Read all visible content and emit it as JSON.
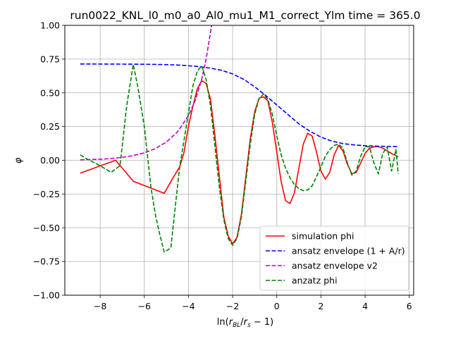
{
  "chart_data": {
    "type": "line",
    "title": "run0022_KNL_l0_m0_a0_Al0_mu1_M1_correct_Ylm time = 365.0",
    "xlabel_main": "ln(",
    "xlabel_r": "r",
    "xlabel_r_sub": "BL",
    "xlabel_slash": "/",
    "xlabel_rs": "r",
    "xlabel_rs_sub": "s",
    "xlabel_tail": " − 1)",
    "ylabel": "φ",
    "xlim": [
      -9.6,
      6.2
    ],
    "ylim": [
      -1.0,
      1.0
    ],
    "grid": true,
    "legend_position": "lower right",
    "x_ticks": [
      {
        "v": -8,
        "label": "−8"
      },
      {
        "v": -6,
        "label": "−6"
      },
      {
        "v": -4,
        "label": "−4"
      },
      {
        "v": -2,
        "label": "−2"
      },
      {
        "v": 0,
        "label": "0"
      },
      {
        "v": 2,
        "label": "2"
      },
      {
        "v": 4,
        "label": "4"
      },
      {
        "v": 6,
        "label": "6"
      }
    ],
    "y_ticks": [
      {
        "v": -1.0,
        "label": "−1.00"
      },
      {
        "v": -0.75,
        "label": "−0.75"
      },
      {
        "v": -0.5,
        "label": "−0.50"
      },
      {
        "v": -0.25,
        "label": "−0.25"
      },
      {
        "v": 0.0,
        "label": "0.00"
      },
      {
        "v": 0.25,
        "label": "0.25"
      },
      {
        "v": 0.5,
        "label": "0.50"
      },
      {
        "v": 0.75,
        "label": "0.75"
      },
      {
        "v": 1.0,
        "label": "1.00"
      }
    ],
    "series": [
      {
        "name": "simulation phi",
        "color": "#ff0000",
        "dash": "solid",
        "points": [
          [
            -8.9,
            -0.095
          ],
          [
            -7.3,
            0.0
          ],
          [
            -6.5,
            -0.155
          ],
          [
            -5.1,
            -0.245
          ],
          [
            -4.7,
            -0.13
          ],
          [
            -4.4,
            -0.05
          ],
          [
            -4.2,
            0.06
          ],
          [
            -4.0,
            0.25
          ],
          [
            -3.8,
            0.4
          ],
          [
            -3.6,
            0.53
          ],
          [
            -3.4,
            0.59
          ],
          [
            -3.2,
            0.57
          ],
          [
            -3.0,
            0.45
          ],
          [
            -2.8,
            0.18
          ],
          [
            -2.6,
            -0.12
          ],
          [
            -2.4,
            -0.42
          ],
          [
            -2.2,
            -0.56
          ],
          [
            -2.0,
            -0.62
          ],
          [
            -1.8,
            -0.57
          ],
          [
            -1.6,
            -0.4
          ],
          [
            -1.4,
            -0.12
          ],
          [
            -1.2,
            0.16
          ],
          [
            -1.0,
            0.36
          ],
          [
            -0.8,
            0.46
          ],
          [
            -0.6,
            0.47
          ],
          [
            -0.4,
            0.44
          ],
          [
            -0.2,
            0.28
          ],
          [
            0.0,
            0.06
          ],
          [
            0.2,
            -0.16
          ],
          [
            0.4,
            -0.3
          ],
          [
            0.6,
            -0.32
          ],
          [
            0.8,
            -0.24
          ],
          [
            1.0,
            -0.06
          ],
          [
            1.2,
            0.12
          ],
          [
            1.4,
            0.2
          ],
          [
            1.6,
            0.18
          ],
          [
            1.8,
            0.06
          ],
          [
            2.0,
            -0.08
          ],
          [
            2.2,
            -0.14
          ],
          [
            2.4,
            -0.09
          ],
          [
            2.6,
            0.04
          ],
          [
            2.8,
            0.11
          ],
          [
            3.0,
            0.07
          ],
          [
            3.2,
            -0.03
          ],
          [
            3.4,
            -0.1
          ],
          [
            3.6,
            -0.09
          ],
          [
            3.8,
            -0.02
          ],
          [
            4.0,
            0.05
          ],
          [
            4.2,
            0.09
          ],
          [
            4.4,
            0.1
          ],
          [
            4.6,
            0.1
          ],
          [
            4.8,
            0.09
          ],
          [
            5.0,
            0.07
          ],
          [
            5.2,
            0.05
          ],
          [
            5.5,
            0.025
          ]
        ]
      },
      {
        "name": "ansatz envelope (1 + A/r)",
        "color": "#0000ff",
        "dash": "dashed",
        "points": [
          [
            -8.9,
            0.714
          ],
          [
            -7.0,
            0.713
          ],
          [
            -6.0,
            0.712
          ],
          [
            -5.0,
            0.709
          ],
          [
            -4.5,
            0.706
          ],
          [
            -4.0,
            0.701
          ],
          [
            -3.5,
            0.694
          ],
          [
            -3.0,
            0.683
          ],
          [
            -2.5,
            0.667
          ],
          [
            -2.0,
            0.64
          ],
          [
            -1.5,
            0.6
          ],
          [
            -1.0,
            0.545
          ],
          [
            -0.5,
            0.48
          ],
          [
            0.0,
            0.41
          ],
          [
            0.5,
            0.34
          ],
          [
            1.0,
            0.27
          ],
          [
            1.5,
            0.215
          ],
          [
            2.0,
            0.172
          ],
          [
            2.5,
            0.142
          ],
          [
            3.0,
            0.124
          ],
          [
            3.5,
            0.114
          ],
          [
            4.0,
            0.108
          ],
          [
            4.5,
            0.105
          ],
          [
            5.0,
            0.103
          ],
          [
            5.5,
            0.102
          ]
        ]
      },
      {
        "name": "ansatz envelope v2",
        "color": "#bf00bf",
        "dash": "dashed",
        "points": [
          [
            -8.9,
            0.003
          ],
          [
            -8.0,
            0.008
          ],
          [
            -7.5,
            0.013
          ],
          [
            -7.0,
            0.022
          ],
          [
            -6.5,
            0.035
          ],
          [
            -6.0,
            0.055
          ],
          [
            -5.5,
            0.086
          ],
          [
            -5.0,
            0.135
          ],
          [
            -4.5,
            0.21
          ],
          [
            -4.0,
            0.33
          ],
          [
            -3.7,
            0.44
          ],
          [
            -3.4,
            0.6
          ],
          [
            -3.2,
            0.75
          ],
          [
            -3.05,
            0.9
          ],
          [
            -2.95,
            1.0
          ]
        ]
      },
      {
        "name": "anzatz phi",
        "color": "#008000",
        "dash": "dashed",
        "points": [
          [
            -8.9,
            0.04
          ],
          [
            -8.6,
            0.01
          ],
          [
            -8.0,
            -0.04
          ],
          [
            -7.5,
            -0.09
          ],
          [
            -7.1,
            -0.04
          ],
          [
            -6.8,
            0.4
          ],
          [
            -6.5,
            0.71
          ],
          [
            -6.3,
            0.55
          ],
          [
            -6.0,
            0.25
          ],
          [
            -5.7,
            -0.2
          ],
          [
            -5.5,
            -0.4
          ],
          [
            -5.3,
            -0.55
          ],
          [
            -5.1,
            -0.68
          ],
          [
            -4.8,
            -0.65
          ],
          [
            -4.6,
            -0.35
          ],
          [
            -4.4,
            -0.05
          ],
          [
            -4.2,
            0.15
          ],
          [
            -4.0,
            0.35
          ],
          [
            -3.8,
            0.55
          ],
          [
            -3.6,
            0.66
          ],
          [
            -3.4,
            0.7
          ],
          [
            -3.2,
            0.6
          ],
          [
            -3.0,
            0.4
          ],
          [
            -2.8,
            0.1
          ],
          [
            -2.6,
            -0.2
          ],
          [
            -2.4,
            -0.44
          ],
          [
            -2.2,
            -0.58
          ],
          [
            -2.0,
            -0.63
          ],
          [
            -1.8,
            -0.58
          ],
          [
            -1.6,
            -0.42
          ],
          [
            -1.4,
            -0.15
          ],
          [
            -1.2,
            0.12
          ],
          [
            -1.0,
            0.34
          ],
          [
            -0.8,
            0.46
          ],
          [
            -0.6,
            0.49
          ],
          [
            -0.4,
            0.45
          ],
          [
            -0.2,
            0.34
          ],
          [
            0.0,
            0.18
          ],
          [
            0.2,
            0.04
          ],
          [
            0.4,
            -0.06
          ],
          [
            0.6,
            -0.13
          ],
          [
            0.8,
            -0.18
          ],
          [
            1.0,
            -0.21
          ],
          [
            1.2,
            -0.225
          ],
          [
            1.4,
            -0.22
          ],
          [
            1.6,
            -0.19
          ],
          [
            1.8,
            -0.12
          ],
          [
            2.0,
            -0.05
          ],
          [
            2.2,
            0.03
          ],
          [
            2.4,
            0.08
          ],
          [
            2.6,
            0.11
          ],
          [
            2.8,
            0.12
          ],
          [
            3.0,
            0.09
          ],
          [
            3.2,
            -0.02
          ],
          [
            3.4,
            -0.11
          ],
          [
            3.6,
            -0.08
          ],
          [
            3.8,
            0.03
          ],
          [
            4.0,
            0.1
          ],
          [
            4.2,
            0.1
          ],
          [
            4.4,
            -0.02
          ],
          [
            4.6,
            -0.1
          ],
          [
            4.8,
            0.05
          ],
          [
            5.0,
            0.1
          ],
          [
            5.2,
            -0.08
          ],
          [
            5.4,
            0.08
          ],
          [
            5.5,
            -0.1
          ]
        ]
      }
    ]
  }
}
